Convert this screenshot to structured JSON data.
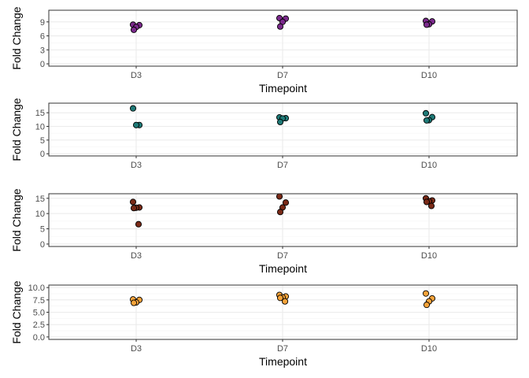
{
  "chart_data": [
    {
      "type": "scatter",
      "xlabel": "Timepoint",
      "ylabel": "Fold Change",
      "categories": [
        "D3",
        "D7",
        "D10"
      ],
      "ylim": [
        -0.5,
        11.5
      ],
      "yticks": [
        "0",
        "3",
        "6",
        "9"
      ],
      "ytick_values": [
        0,
        3,
        6,
        9
      ],
      "color": "#7b2a8c",
      "grid": true,
      "series": [
        {
          "values": [
            {
              "x": "D3",
              "y": 8.4
            },
            {
              "x": "D3",
              "y": 8.3
            },
            {
              "x": "D3",
              "y": 7.9
            },
            {
              "x": "D3",
              "y": 7.3
            },
            {
              "x": "D7",
              "y": 9.8
            },
            {
              "x": "D7",
              "y": 9.7
            },
            {
              "x": "D7",
              "y": 9.0
            },
            {
              "x": "D7",
              "y": 8.0
            },
            {
              "x": "D10",
              "y": 9.2
            },
            {
              "x": "D10",
              "y": 9.1
            },
            {
              "x": "D10",
              "y": 8.5
            },
            {
              "x": "D10",
              "y": 8.4
            }
          ]
        }
      ]
    },
    {
      "type": "scatter",
      "xlabel": "",
      "ylabel": "Fold Change",
      "categories": [
        "D3",
        "D7",
        "D10"
      ],
      "ylim": [
        -0.8,
        18.5
      ],
      "yticks": [
        "0",
        "5",
        "10",
        "15"
      ],
      "ytick_values": [
        0,
        5,
        10,
        15
      ],
      "color": "#1f7a77",
      "grid": true,
      "series": [
        {
          "values": [
            {
              "x": "D3",
              "y": 16.6
            },
            {
              "x": "D3",
              "y": 10.5
            },
            {
              "x": "D3",
              "y": 10.5
            },
            {
              "x": "D7",
              "y": 13.3
            },
            {
              "x": "D7",
              "y": 13.0
            },
            {
              "x": "D7",
              "y": 12.9
            },
            {
              "x": "D7",
              "y": 11.6
            },
            {
              "x": "D10",
              "y": 14.8
            },
            {
              "x": "D10",
              "y": 13.4
            },
            {
              "x": "D10",
              "y": 12.3
            },
            {
              "x": "D10",
              "y": 12.2
            }
          ]
        }
      ]
    },
    {
      "type": "scatter",
      "xlabel": "Timepoint",
      "ylabel": "Fold Change",
      "categories": [
        "D3",
        "D7",
        "D10"
      ],
      "ylim": [
        -0.8,
        16.5
      ],
      "yticks": [
        "0",
        "5",
        "10",
        "15"
      ],
      "ytick_values": [
        0,
        5,
        10,
        15
      ],
      "color": "#7a2a17",
      "grid": true,
      "series": [
        {
          "values": [
            {
              "x": "D3",
              "y": 13.8
            },
            {
              "x": "D3",
              "y": 12.0
            },
            {
              "x": "D3",
              "y": 11.9
            },
            {
              "x": "D3",
              "y": 11.8
            },
            {
              "x": "D3",
              "y": 6.5
            },
            {
              "x": "D7",
              "y": 15.6
            },
            {
              "x": "D7",
              "y": 13.6
            },
            {
              "x": "D7",
              "y": 12.0
            },
            {
              "x": "D7",
              "y": 10.5
            },
            {
              "x": "D10",
              "y": 15.0
            },
            {
              "x": "D10",
              "y": 14.3
            },
            {
              "x": "D10",
              "y": 14.0
            },
            {
              "x": "D10",
              "y": 13.8
            },
            {
              "x": "D10",
              "y": 12.5
            }
          ]
        }
      ]
    },
    {
      "type": "scatter",
      "xlabel": "Timepoint",
      "ylabel": "Fold Change",
      "categories": [
        "D3",
        "D7",
        "D10"
      ],
      "ylim": [
        -0.5,
        10.5
      ],
      "yticks": [
        "0.0",
        "2.5",
        "5.0",
        "7.5",
        "10.0"
      ],
      "ytick_values": [
        0,
        2.5,
        5,
        7.5,
        10
      ],
      "color": "#f5a33a",
      "grid": true,
      "series": [
        {
          "values": [
            {
              "x": "D3",
              "y": 7.6
            },
            {
              "x": "D3",
              "y": 7.5
            },
            {
              "x": "D3",
              "y": 7.0
            },
            {
              "x": "D3",
              "y": 6.9
            },
            {
              "x": "D7",
              "y": 8.5
            },
            {
              "x": "D7",
              "y": 8.2
            },
            {
              "x": "D7",
              "y": 8.0
            },
            {
              "x": "D7",
              "y": 7.9
            },
            {
              "x": "D7",
              "y": 7.2
            },
            {
              "x": "D10",
              "y": 8.8
            },
            {
              "x": "D10",
              "y": 7.8
            },
            {
              "x": "D10",
              "y": 7.2
            },
            {
              "x": "D10",
              "y": 6.5
            }
          ]
        }
      ]
    }
  ]
}
